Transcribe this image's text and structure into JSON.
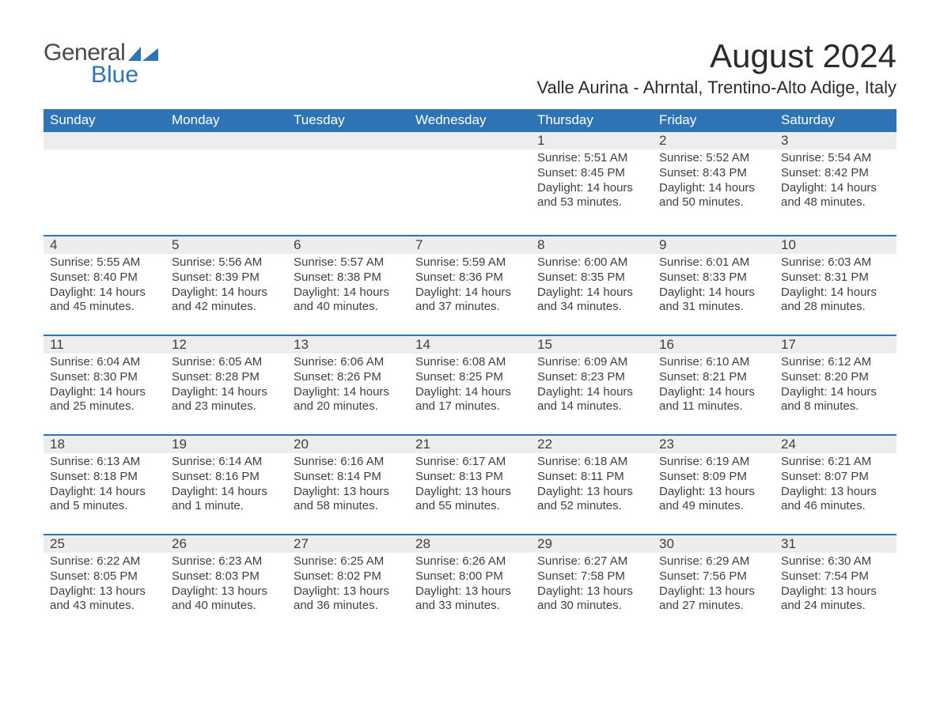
{
  "logo": {
    "word1": "General",
    "word2": "Blue"
  },
  "title": "August 2024",
  "subtitle": "Valle Aurina - Ahrntal, Trentino-Alto Adige, Italy",
  "dayNames": [
    "Sunday",
    "Monday",
    "Tuesday",
    "Wednesday",
    "Thursday",
    "Friday",
    "Saturday"
  ],
  "colors": {
    "headerBg": "#2e74b5",
    "dayNumBg": "#ededed",
    "rowBorder": "#2e74b5",
    "text": "#404040"
  },
  "labels": {
    "sunrise": "Sunrise:",
    "sunset": "Sunset:",
    "daylight": "Daylight:"
  },
  "weeks": [
    [
      null,
      null,
      null,
      null,
      {
        "n": "1",
        "sr": "5:51 AM",
        "ss": "8:45 PM",
        "dl": "14 hours and 53 minutes."
      },
      {
        "n": "2",
        "sr": "5:52 AM",
        "ss": "8:43 PM",
        "dl": "14 hours and 50 minutes."
      },
      {
        "n": "3",
        "sr": "5:54 AM",
        "ss": "8:42 PM",
        "dl": "14 hours and 48 minutes."
      }
    ],
    [
      {
        "n": "4",
        "sr": "5:55 AM",
        "ss": "8:40 PM",
        "dl": "14 hours and 45 minutes."
      },
      {
        "n": "5",
        "sr": "5:56 AM",
        "ss": "8:39 PM",
        "dl": "14 hours and 42 minutes."
      },
      {
        "n": "6",
        "sr": "5:57 AM",
        "ss": "8:38 PM",
        "dl": "14 hours and 40 minutes."
      },
      {
        "n": "7",
        "sr": "5:59 AM",
        "ss": "8:36 PM",
        "dl": "14 hours and 37 minutes."
      },
      {
        "n": "8",
        "sr": "6:00 AM",
        "ss": "8:35 PM",
        "dl": "14 hours and 34 minutes."
      },
      {
        "n": "9",
        "sr": "6:01 AM",
        "ss": "8:33 PM",
        "dl": "14 hours and 31 minutes."
      },
      {
        "n": "10",
        "sr": "6:03 AM",
        "ss": "8:31 PM",
        "dl": "14 hours and 28 minutes."
      }
    ],
    [
      {
        "n": "11",
        "sr": "6:04 AM",
        "ss": "8:30 PM",
        "dl": "14 hours and 25 minutes."
      },
      {
        "n": "12",
        "sr": "6:05 AM",
        "ss": "8:28 PM",
        "dl": "14 hours and 23 minutes."
      },
      {
        "n": "13",
        "sr": "6:06 AM",
        "ss": "8:26 PM",
        "dl": "14 hours and 20 minutes."
      },
      {
        "n": "14",
        "sr": "6:08 AM",
        "ss": "8:25 PM",
        "dl": "14 hours and 17 minutes."
      },
      {
        "n": "15",
        "sr": "6:09 AM",
        "ss": "8:23 PM",
        "dl": "14 hours and 14 minutes."
      },
      {
        "n": "16",
        "sr": "6:10 AM",
        "ss": "8:21 PM",
        "dl": "14 hours and 11 minutes."
      },
      {
        "n": "17",
        "sr": "6:12 AM",
        "ss": "8:20 PM",
        "dl": "14 hours and 8 minutes."
      }
    ],
    [
      {
        "n": "18",
        "sr": "6:13 AM",
        "ss": "8:18 PM",
        "dl": "14 hours and 5 minutes."
      },
      {
        "n": "19",
        "sr": "6:14 AM",
        "ss": "8:16 PM",
        "dl": "14 hours and 1 minute."
      },
      {
        "n": "20",
        "sr": "6:16 AM",
        "ss": "8:14 PM",
        "dl": "13 hours and 58 minutes."
      },
      {
        "n": "21",
        "sr": "6:17 AM",
        "ss": "8:13 PM",
        "dl": "13 hours and 55 minutes."
      },
      {
        "n": "22",
        "sr": "6:18 AM",
        "ss": "8:11 PM",
        "dl": "13 hours and 52 minutes."
      },
      {
        "n": "23",
        "sr": "6:19 AM",
        "ss": "8:09 PM",
        "dl": "13 hours and 49 minutes."
      },
      {
        "n": "24",
        "sr": "6:21 AM",
        "ss": "8:07 PM",
        "dl": "13 hours and 46 minutes."
      }
    ],
    [
      {
        "n": "25",
        "sr": "6:22 AM",
        "ss": "8:05 PM",
        "dl": "13 hours and 43 minutes."
      },
      {
        "n": "26",
        "sr": "6:23 AM",
        "ss": "8:03 PM",
        "dl": "13 hours and 40 minutes."
      },
      {
        "n": "27",
        "sr": "6:25 AM",
        "ss": "8:02 PM",
        "dl": "13 hours and 36 minutes."
      },
      {
        "n": "28",
        "sr": "6:26 AM",
        "ss": "8:00 PM",
        "dl": "13 hours and 33 minutes."
      },
      {
        "n": "29",
        "sr": "6:27 AM",
        "ss": "7:58 PM",
        "dl": "13 hours and 30 minutes."
      },
      {
        "n": "30",
        "sr": "6:29 AM",
        "ss": "7:56 PM",
        "dl": "13 hours and 27 minutes."
      },
      {
        "n": "31",
        "sr": "6:30 AM",
        "ss": "7:54 PM",
        "dl": "13 hours and 24 minutes."
      }
    ]
  ]
}
